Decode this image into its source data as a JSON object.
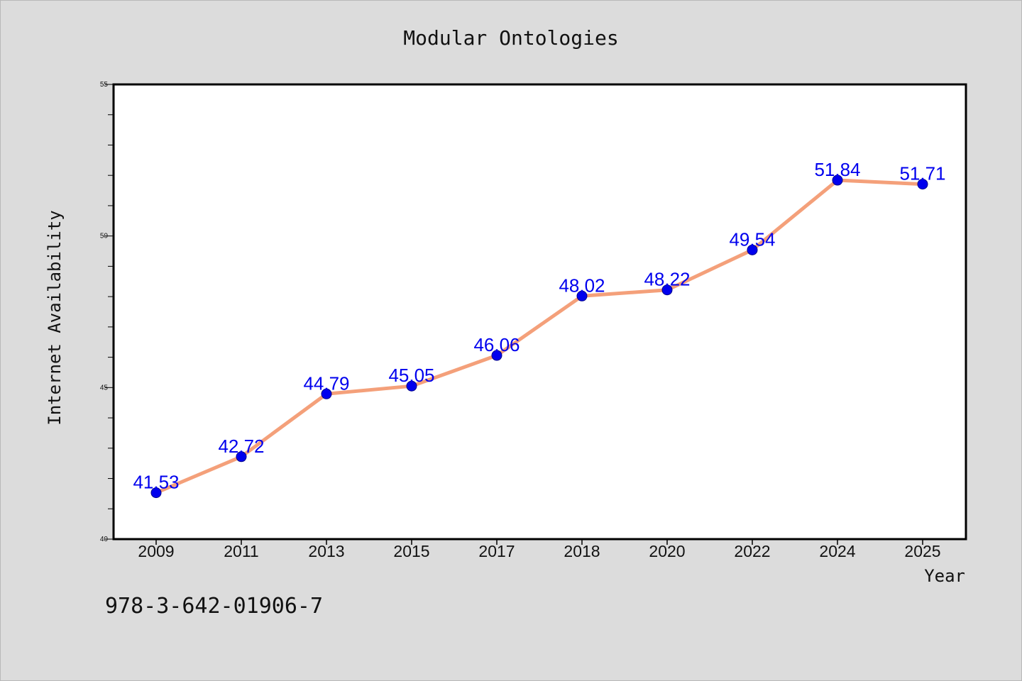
{
  "chart_data": {
    "type": "line",
    "title": "Modular Ontologies",
    "xlabel": "Year",
    "ylabel": "Internet Availability",
    "categories": [
      "2009",
      "2011",
      "2013",
      "2015",
      "2017",
      "2018",
      "2020",
      "2022",
      "2024",
      "2025"
    ],
    "series": [
      {
        "values": [
          41.53,
          42.72,
          44.79,
          45.05,
          46.06,
          48.02,
          48.22,
          49.54,
          51.84,
          51.71
        ],
        "labels": [
          "41.53",
          "42.72",
          "44.79",
          "45.05",
          "46.06",
          "48.02",
          "48.22",
          "49.54",
          "51.84",
          "51.71"
        ],
        "line_color": "#f4a07a",
        "marker_color": "#0000ee",
        "label_color": "#0000ee"
      }
    ],
    "ylim": [
      40,
      55
    ],
    "yticks": [
      "40",
      "45",
      "50",
      "55"
    ],
    "grid": false,
    "legend": "none"
  },
  "footer": {
    "code": "978-3-642-01906-7"
  }
}
